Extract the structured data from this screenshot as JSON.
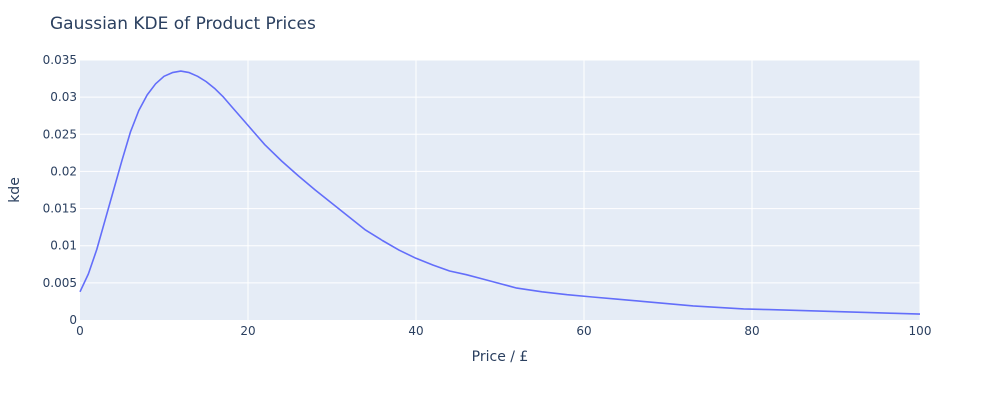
{
  "chart_data": {
    "type": "line",
    "title": "Gaussian KDE of Product Prices",
    "xlabel": "Price / £",
    "ylabel": "kde",
    "xlim": [
      0,
      100
    ],
    "ylim": [
      0,
      0.035
    ],
    "grid": true,
    "x_ticks": [
      {
        "value": 0,
        "label": "0"
      },
      {
        "value": 20,
        "label": "20"
      },
      {
        "value": 40,
        "label": "40"
      },
      {
        "value": 60,
        "label": "60"
      },
      {
        "value": 80,
        "label": "80"
      },
      {
        "value": 100,
        "label": "100"
      }
    ],
    "y_ticks": [
      {
        "value": 0,
        "label": "0"
      },
      {
        "value": 0.005,
        "label": "0.005"
      },
      {
        "value": 0.01,
        "label": "0.01"
      },
      {
        "value": 0.015,
        "label": "0.015"
      },
      {
        "value": 0.02,
        "label": "0.02"
      },
      {
        "value": 0.025,
        "label": "0.025"
      },
      {
        "value": 0.03,
        "label": "0.03"
      },
      {
        "value": 0.035,
        "label": "0.035"
      }
    ],
    "series": [
      {
        "color": "#636efa",
        "x": [
          0,
          1,
          2,
          3,
          4,
          5,
          6,
          7,
          8,
          9,
          10,
          11,
          12,
          13,
          14,
          15,
          16,
          17,
          18,
          20,
          22,
          24,
          26,
          28,
          30,
          32,
          34,
          36,
          38,
          40,
          42,
          44,
          46,
          48,
          50,
          52,
          55,
          58,
          61,
          64,
          67,
          70,
          73,
          76,
          79,
          82,
          85,
          88,
          91,
          94,
          97,
          100
        ],
        "y": [
          0.0038,
          0.0062,
          0.0095,
          0.0135,
          0.0175,
          0.0215,
          0.0253,
          0.0282,
          0.0303,
          0.0318,
          0.0328,
          0.0333,
          0.0335,
          0.0333,
          0.0328,
          0.0321,
          0.0312,
          0.0301,
          0.0288,
          0.0262,
          0.0236,
          0.0214,
          0.0194,
          0.0175,
          0.0157,
          0.0139,
          0.0121,
          0.0107,
          0.0094,
          0.0083,
          0.0074,
          0.0066,
          0.0061,
          0.0055,
          0.0049,
          0.0043,
          0.0038,
          0.0034,
          0.0031,
          0.0028,
          0.0025,
          0.0022,
          0.0019,
          0.0017,
          0.0015,
          0.0014,
          0.0013,
          0.0012,
          0.0011,
          0.001,
          0.0009,
          0.0008
        ]
      }
    ]
  }
}
